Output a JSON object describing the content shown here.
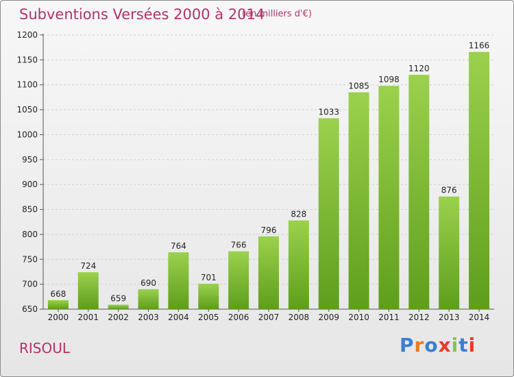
{
  "header": {
    "title": "Subventions Versées 2000 à 2014",
    "unit_note": "(en milliers d'€)"
  },
  "footer": {
    "commune": "RISOUL",
    "logo_text": "Proxiti"
  },
  "colors": {
    "title": "#b1336a",
    "bar_top": "#9bd14d",
    "bar_bottom": "#5e9e1c",
    "logo_letters": [
      "#3a7fd0",
      "#e87d1e",
      "#3a7fd0",
      "#e83a2c",
      "#8ac43f",
      "#3a7fd0",
      "#e83a2c"
    ]
  },
  "chart_data": {
    "type": "bar",
    "title": "Subventions Versées 2000 à 2014",
    "subtitle": "(en milliers d'€)",
    "categories": [
      "2000",
      "2001",
      "2002",
      "2003",
      "2004",
      "2005",
      "2006",
      "2007",
      "2008",
      "2009",
      "2010",
      "2011",
      "2012",
      "2013",
      "2014"
    ],
    "values": [
      668,
      724,
      659,
      690,
      764,
      701,
      766,
      796,
      828,
      1033,
      1085,
      1098,
      1120,
      876,
      1166
    ],
    "ylim": [
      650,
      1200
    ],
    "yticks": [
      650,
      700,
      750,
      800,
      850,
      900,
      950,
      1000,
      1050,
      1100,
      1150,
      1200
    ],
    "grid": true,
    "data_labels": true,
    "xlabel": "",
    "ylabel": ""
  }
}
